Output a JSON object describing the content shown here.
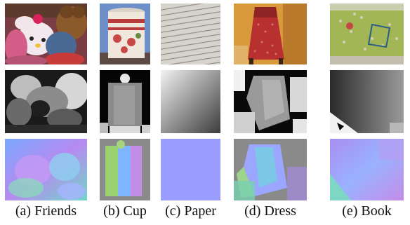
{
  "figure": {
    "columns": [
      {
        "key": "friends",
        "caption": "(a) Friends"
      },
      {
        "key": "cup",
        "caption": "(b) Cup"
      },
      {
        "key": "paper",
        "caption": "(c) Paper"
      },
      {
        "key": "dress",
        "caption": "(d) Dress"
      },
      {
        "key": "book",
        "caption": "(e) Book"
      }
    ],
    "rows": [
      "rgb-image",
      "depth-map",
      "normal-map"
    ]
  }
}
